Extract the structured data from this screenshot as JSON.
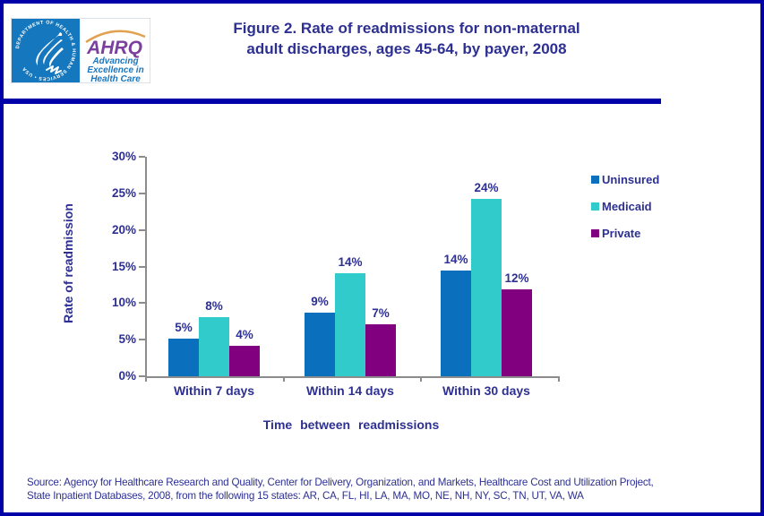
{
  "header": {
    "title_line1": "Figure 2. Rate of readmissions for non-maternal",
    "title_line2": "adult discharges, ages 45-64, by payer, 2008",
    "logo": {
      "seal_text": "DEPARTMENT OF HEALTH & HUMAN SERVICES • USA",
      "wordmark": "AHRQ",
      "tagline": [
        "Advancing",
        "Excellence in",
        "Health Care"
      ]
    }
  },
  "chart_data": {
    "type": "bar",
    "title": "Figure 2. Rate of readmissions for non-maternal adult discharges, ages 45-64, by payer, 2008",
    "categories": [
      "Within 7 days",
      "Within 14 days",
      "Within 30 days"
    ],
    "series": [
      {
        "name": "Uninsured",
        "color": "#0A70BE",
        "values": [
          5.1,
          8.7,
          14.4
        ],
        "labels": [
          "5%",
          "9%",
          "14%"
        ]
      },
      {
        "name": "Medicaid",
        "color": "#31CBCB",
        "values": [
          8.1,
          14.1,
          24.3
        ],
        "labels": [
          "8%",
          "14%",
          "24%"
        ]
      },
      {
        "name": "Private",
        "color": "#800080",
        "values": [
          4.2,
          7.1,
          11.9
        ],
        "labels": [
          "4%",
          "7%",
          "12%"
        ]
      }
    ],
    "xlabel": "Time between readmissions",
    "ylabel": "Rate of readmission",
    "ylim": [
      0,
      30
    ],
    "ytick_step": 5,
    "ytick_suffix": "%",
    "grid": false,
    "legend_position": "right"
  },
  "source": {
    "line1": "Source: Agency for Healthcare Research and Quality, Center for Delivery, Organization, and Markets, Healthcare Cost and Utilization Project,",
    "line2": "State Inpatient Databases, 2008, from the following 15 states: AR, CA, FL, HI, LA, MA, MO, NE, NH, NY, SC, TN, UT, VA, WA"
  },
  "colors": {
    "accent_navy": "#0000A8",
    "text_navy": "#2D3092",
    "axis_gray": "#8C8C8C"
  }
}
